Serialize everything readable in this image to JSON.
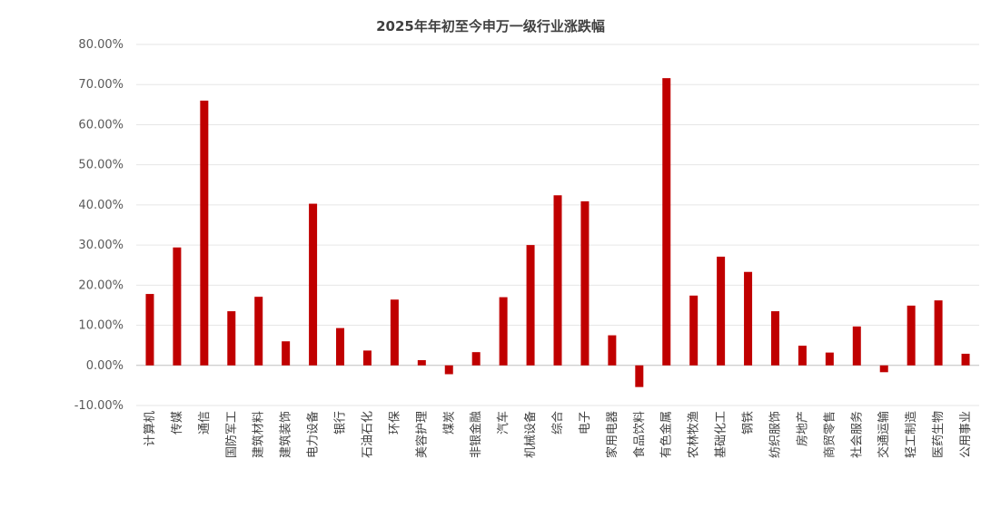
{
  "chart_data": {
    "type": "bar",
    "title": "2025年年初至今申万一级行业涨跌幅",
    "xlabel": "",
    "ylabel": "",
    "ylim": [
      -10,
      80
    ],
    "yticks": [
      -10,
      0,
      10,
      20,
      30,
      40,
      50,
      60,
      70,
      80
    ],
    "ytick_labels": [
      "-10.00%",
      "0.00%",
      "10.00%",
      "20.00%",
      "30.00%",
      "40.00%",
      "50.00%",
      "60.00%",
      "70.00%",
      "80.00%"
    ],
    "grid": true,
    "legend": "none",
    "bar_color": "#c00000",
    "categories": [
      "计算机",
      "传媒",
      "通信",
      "国防军工",
      "建筑材料",
      "建筑装饰",
      "电力设备",
      "银行",
      "石油石化",
      "环保",
      "美容护理",
      "煤炭",
      "非银金融",
      "汽车",
      "机械设备",
      "综合",
      "电子",
      "家用电器",
      "食品饮料",
      "有色金属",
      "农林牧渔",
      "基础化工",
      "钢铁",
      "纺织服饰",
      "房地产",
      "商贸零售",
      "社会服务",
      "交通运输",
      "轻工制造",
      "医药生物",
      "公用事业"
    ],
    "values": [
      17.8,
      29.4,
      66.0,
      13.5,
      17.1,
      6.0,
      40.3,
      9.3,
      3.7,
      16.4,
      1.3,
      -2.2,
      3.3,
      17.0,
      30.0,
      42.4,
      40.9,
      7.5,
      -5.4,
      71.6,
      17.4,
      27.1,
      23.3,
      13.5,
      4.9,
      3.2,
      9.7,
      -1.7,
      14.9,
      16.2,
      2.9
    ]
  }
}
